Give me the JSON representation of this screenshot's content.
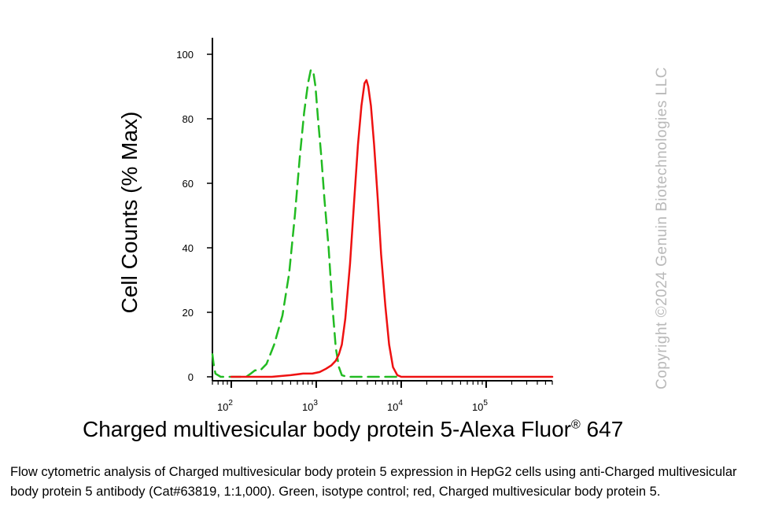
{
  "chart_data": {
    "type": "line",
    "ylabel": "Cell Counts (% Max)",
    "xlabel": "Charged multivesicular body protein 5-Alexa Fluor",
    "xlabel_sup": "®",
    "xlabel_suffix": " 647",
    "x_scale": "log",
    "xlim": [
      60,
      600000
    ],
    "ylim": [
      0,
      100
    ],
    "y_ticks": [
      0,
      20,
      40,
      60,
      80,
      100
    ],
    "x_major_ticks": [
      {
        "value": 100,
        "base": "10",
        "exp": "2"
      },
      {
        "value": 1000,
        "base": "10",
        "exp": "3"
      },
      {
        "value": 10000,
        "base": "10",
        "exp": "4"
      },
      {
        "value": 100000,
        "base": "10",
        "exp": "5"
      }
    ],
    "grid": false,
    "series": [
      {
        "color": "#22bb22",
        "style": "dashed",
        "x": [
          60,
          62,
          65,
          75,
          100,
          150,
          170,
          190,
          220,
          260,
          320,
          400,
          480,
          560,
          640,
          720,
          800,
          860,
          920,
          980,
          1050,
          1150,
          1250,
          1400,
          1550,
          1700,
          1850,
          2000,
          2300,
          3000,
          5000,
          10000
        ],
        "y": [
          7,
          4,
          1,
          0,
          0,
          0,
          1,
          2,
          2,
          4,
          10,
          19,
          32,
          50,
          68,
          82,
          91,
          95,
          95,
          90,
          80,
          68,
          55,
          40,
          22,
          9,
          3,
          0.5,
          0,
          0,
          0,
          0
        ]
      },
      {
        "color": "#ee1111",
        "style": "solid",
        "x": [
          100,
          300,
          500,
          700,
          900,
          1100,
          1300,
          1500,
          1700,
          1850,
          2000,
          2200,
          2500,
          2800,
          3100,
          3400,
          3700,
          3900,
          4100,
          4400,
          4800,
          5300,
          5800,
          6500,
          7200,
          8000,
          9000,
          10000,
          20000,
          100000,
          600000
        ],
        "y": [
          0,
          0,
          0.5,
          1,
          1,
          1.5,
          2.5,
          3.5,
          5,
          7,
          10,
          18,
          35,
          55,
          72,
          84,
          91,
          92,
          90,
          84,
          72,
          55,
          38,
          22,
          10,
          3,
          0.5,
          0,
          0,
          0,
          0
        ]
      }
    ]
  },
  "watermark": "Copyright ©2024 Genuin Biotechnologies LLC",
  "caption": "Flow cytometric analysis of Charged multivesicular body protein 5 expression in HepG2 cells using anti-Charged multivesicular body protein 5 antibody  (Cat#63819, 1:1,000). Green, isotype control; red, Charged multivesicular body protein 5."
}
